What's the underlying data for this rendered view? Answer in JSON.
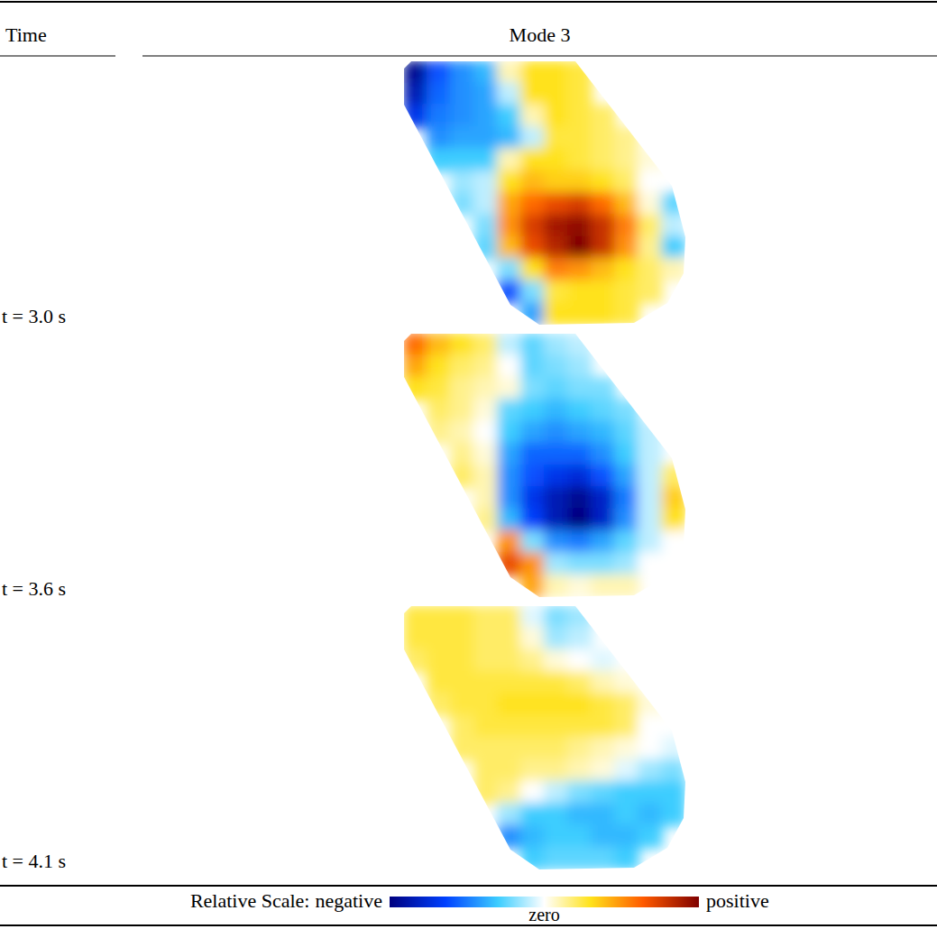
{
  "chart_data": {
    "type": "heatmap_panels",
    "column_headers": [
      "Time",
      "Mode 3"
    ],
    "panels": [
      {
        "label": "t = 3.0 s",
        "cells": [
          [
            -0.95,
            -0.6,
            -0.45,
            -0.35,
            0.1,
            0.3,
            0.3,
            0.25,
            null,
            null,
            null,
            null
          ],
          [
            -0.85,
            -0.55,
            -0.45,
            -0.4,
            -0.1,
            0.3,
            0.3,
            0.25,
            null,
            null,
            null,
            null
          ],
          [
            -0.7,
            -0.5,
            -0.45,
            -0.4,
            -0.3,
            0.1,
            0.3,
            0.25,
            0.2,
            null,
            null,
            null
          ],
          [
            null,
            -0.45,
            -0.4,
            -0.4,
            -0.35,
            -0.1,
            0.25,
            0.25,
            0.2,
            0.15,
            null,
            null
          ],
          [
            null,
            -0.3,
            -0.3,
            -0.3,
            0.1,
            0.3,
            0.3,
            0.25,
            0.2,
            0.15,
            0.05,
            null
          ],
          [
            null,
            null,
            -0.15,
            -0.1,
            0.3,
            0.4,
            0.35,
            0.35,
            0.3,
            0.2,
            0.0,
            null
          ],
          [
            null,
            null,
            -0.2,
            -0.1,
            0.45,
            0.6,
            0.7,
            0.75,
            0.6,
            0.4,
            0.05,
            -0.25
          ],
          [
            null,
            null,
            null,
            -0.2,
            0.5,
            0.75,
            0.9,
            0.95,
            0.8,
            0.55,
            0.2,
            -0.1
          ],
          [
            null,
            null,
            null,
            -0.25,
            0.4,
            0.7,
            0.85,
            1.0,
            0.8,
            0.5,
            0.15,
            -0.3
          ],
          [
            null,
            null,
            null,
            null,
            -0.2,
            0.3,
            0.55,
            0.5,
            0.4,
            0.3,
            0.2,
            0.1
          ],
          [
            null,
            null,
            null,
            null,
            -0.6,
            -0.2,
            0.25,
            0.3,
            0.3,
            0.25,
            0.2,
            null
          ],
          [
            null,
            null,
            null,
            null,
            null,
            -0.4,
            0.3,
            0.3,
            0.3,
            0.25,
            null,
            null
          ]
        ]
      },
      {
        "label": "t = 3.6 s",
        "cells": [
          [
            0.6,
            0.4,
            0.3,
            0.2,
            -0.1,
            -0.25,
            -0.15,
            -0.1,
            null,
            null,
            null,
            null
          ],
          [
            0.45,
            0.3,
            0.2,
            0.15,
            0.0,
            -0.25,
            -0.2,
            -0.15,
            null,
            null,
            null,
            null
          ],
          [
            0.3,
            0.25,
            0.15,
            0.1,
            0.05,
            -0.2,
            -0.25,
            -0.2,
            -0.2,
            null,
            null,
            null
          ],
          [
            null,
            0.2,
            0.15,
            0.05,
            -0.25,
            -0.3,
            -0.35,
            -0.3,
            -0.25,
            -0.2,
            null,
            null
          ],
          [
            null,
            0.15,
            0.1,
            0.0,
            -0.3,
            -0.4,
            -0.45,
            -0.4,
            -0.35,
            -0.25,
            -0.1,
            null
          ],
          [
            null,
            null,
            0.15,
            0.05,
            -0.4,
            -0.55,
            -0.55,
            -0.55,
            -0.45,
            -0.3,
            -0.1,
            null
          ],
          [
            null,
            null,
            0.2,
            0.1,
            -0.45,
            -0.6,
            -0.7,
            -0.75,
            -0.6,
            -0.4,
            -0.1,
            0.2
          ],
          [
            null,
            null,
            null,
            0.1,
            -0.45,
            -0.7,
            -0.85,
            -0.95,
            -0.8,
            -0.5,
            -0.1,
            0.35
          ],
          [
            null,
            null,
            null,
            0.15,
            -0.35,
            -0.65,
            -0.85,
            -1.0,
            -0.8,
            -0.45,
            -0.1,
            0.3
          ],
          [
            null,
            null,
            null,
            null,
            0.5,
            -0.2,
            -0.45,
            -0.5,
            -0.4,
            -0.25,
            -0.1,
            0.0
          ],
          [
            null,
            null,
            null,
            null,
            0.7,
            0.5,
            -0.15,
            -0.2,
            -0.2,
            -0.15,
            0.0,
            null
          ],
          [
            null,
            null,
            null,
            null,
            null,
            0.45,
            0.1,
            0.05,
            0.1,
            0.1,
            null,
            null
          ]
        ]
      },
      {
        "label": "t = 4.1 s",
        "cells": [
          [
            0.25,
            0.25,
            0.25,
            0.2,
            0.2,
            -0.05,
            -0.2,
            -0.15,
            null,
            null,
            null,
            null
          ],
          [
            0.25,
            0.25,
            0.25,
            0.2,
            0.2,
            0.05,
            -0.15,
            -0.1,
            null,
            null,
            null,
            null
          ],
          [
            0.2,
            0.25,
            0.25,
            0.2,
            0.2,
            0.15,
            0.05,
            0.0,
            -0.05,
            null,
            null,
            null
          ],
          [
            null,
            0.25,
            0.25,
            0.25,
            0.25,
            0.25,
            0.25,
            0.2,
            0.1,
            0.05,
            null,
            null
          ],
          [
            null,
            0.2,
            0.25,
            0.25,
            0.3,
            0.3,
            0.3,
            0.3,
            0.25,
            0.2,
            0.05,
            null
          ],
          [
            null,
            null,
            0.2,
            0.25,
            0.25,
            0.25,
            0.25,
            0.25,
            0.25,
            0.2,
            0.0,
            null
          ],
          [
            null,
            null,
            0.2,
            0.2,
            0.2,
            0.2,
            0.2,
            0.15,
            0.1,
            0.05,
            0.0,
            -0.05
          ],
          [
            null,
            null,
            null,
            0.2,
            0.2,
            0.15,
            0.15,
            0.1,
            0.05,
            -0.05,
            -0.15,
            -0.2
          ],
          [
            null,
            null,
            null,
            0.2,
            0.15,
            0.0,
            -0.1,
            -0.2,
            -0.25,
            -0.3,
            -0.3,
            -0.3
          ],
          [
            null,
            null,
            null,
            null,
            -0.15,
            -0.3,
            -0.3,
            -0.35,
            -0.35,
            -0.3,
            -0.35,
            -0.3
          ],
          [
            null,
            null,
            null,
            null,
            -0.45,
            -0.35,
            -0.3,
            -0.3,
            -0.35,
            -0.35,
            -0.3,
            null
          ],
          [
            null,
            null,
            null,
            null,
            null,
            -0.3,
            -0.25,
            -0.25,
            -0.25,
            -0.3,
            null,
            null
          ]
        ]
      }
    ],
    "color_label": "Relative Scale:",
    "color_range": [
      -1,
      1
    ],
    "color_ticks": [
      {
        "value": -1,
        "label": "negative"
      },
      {
        "value": 0,
        "label": "zero"
      },
      {
        "value": 1,
        "label": "positive"
      }
    ]
  }
}
